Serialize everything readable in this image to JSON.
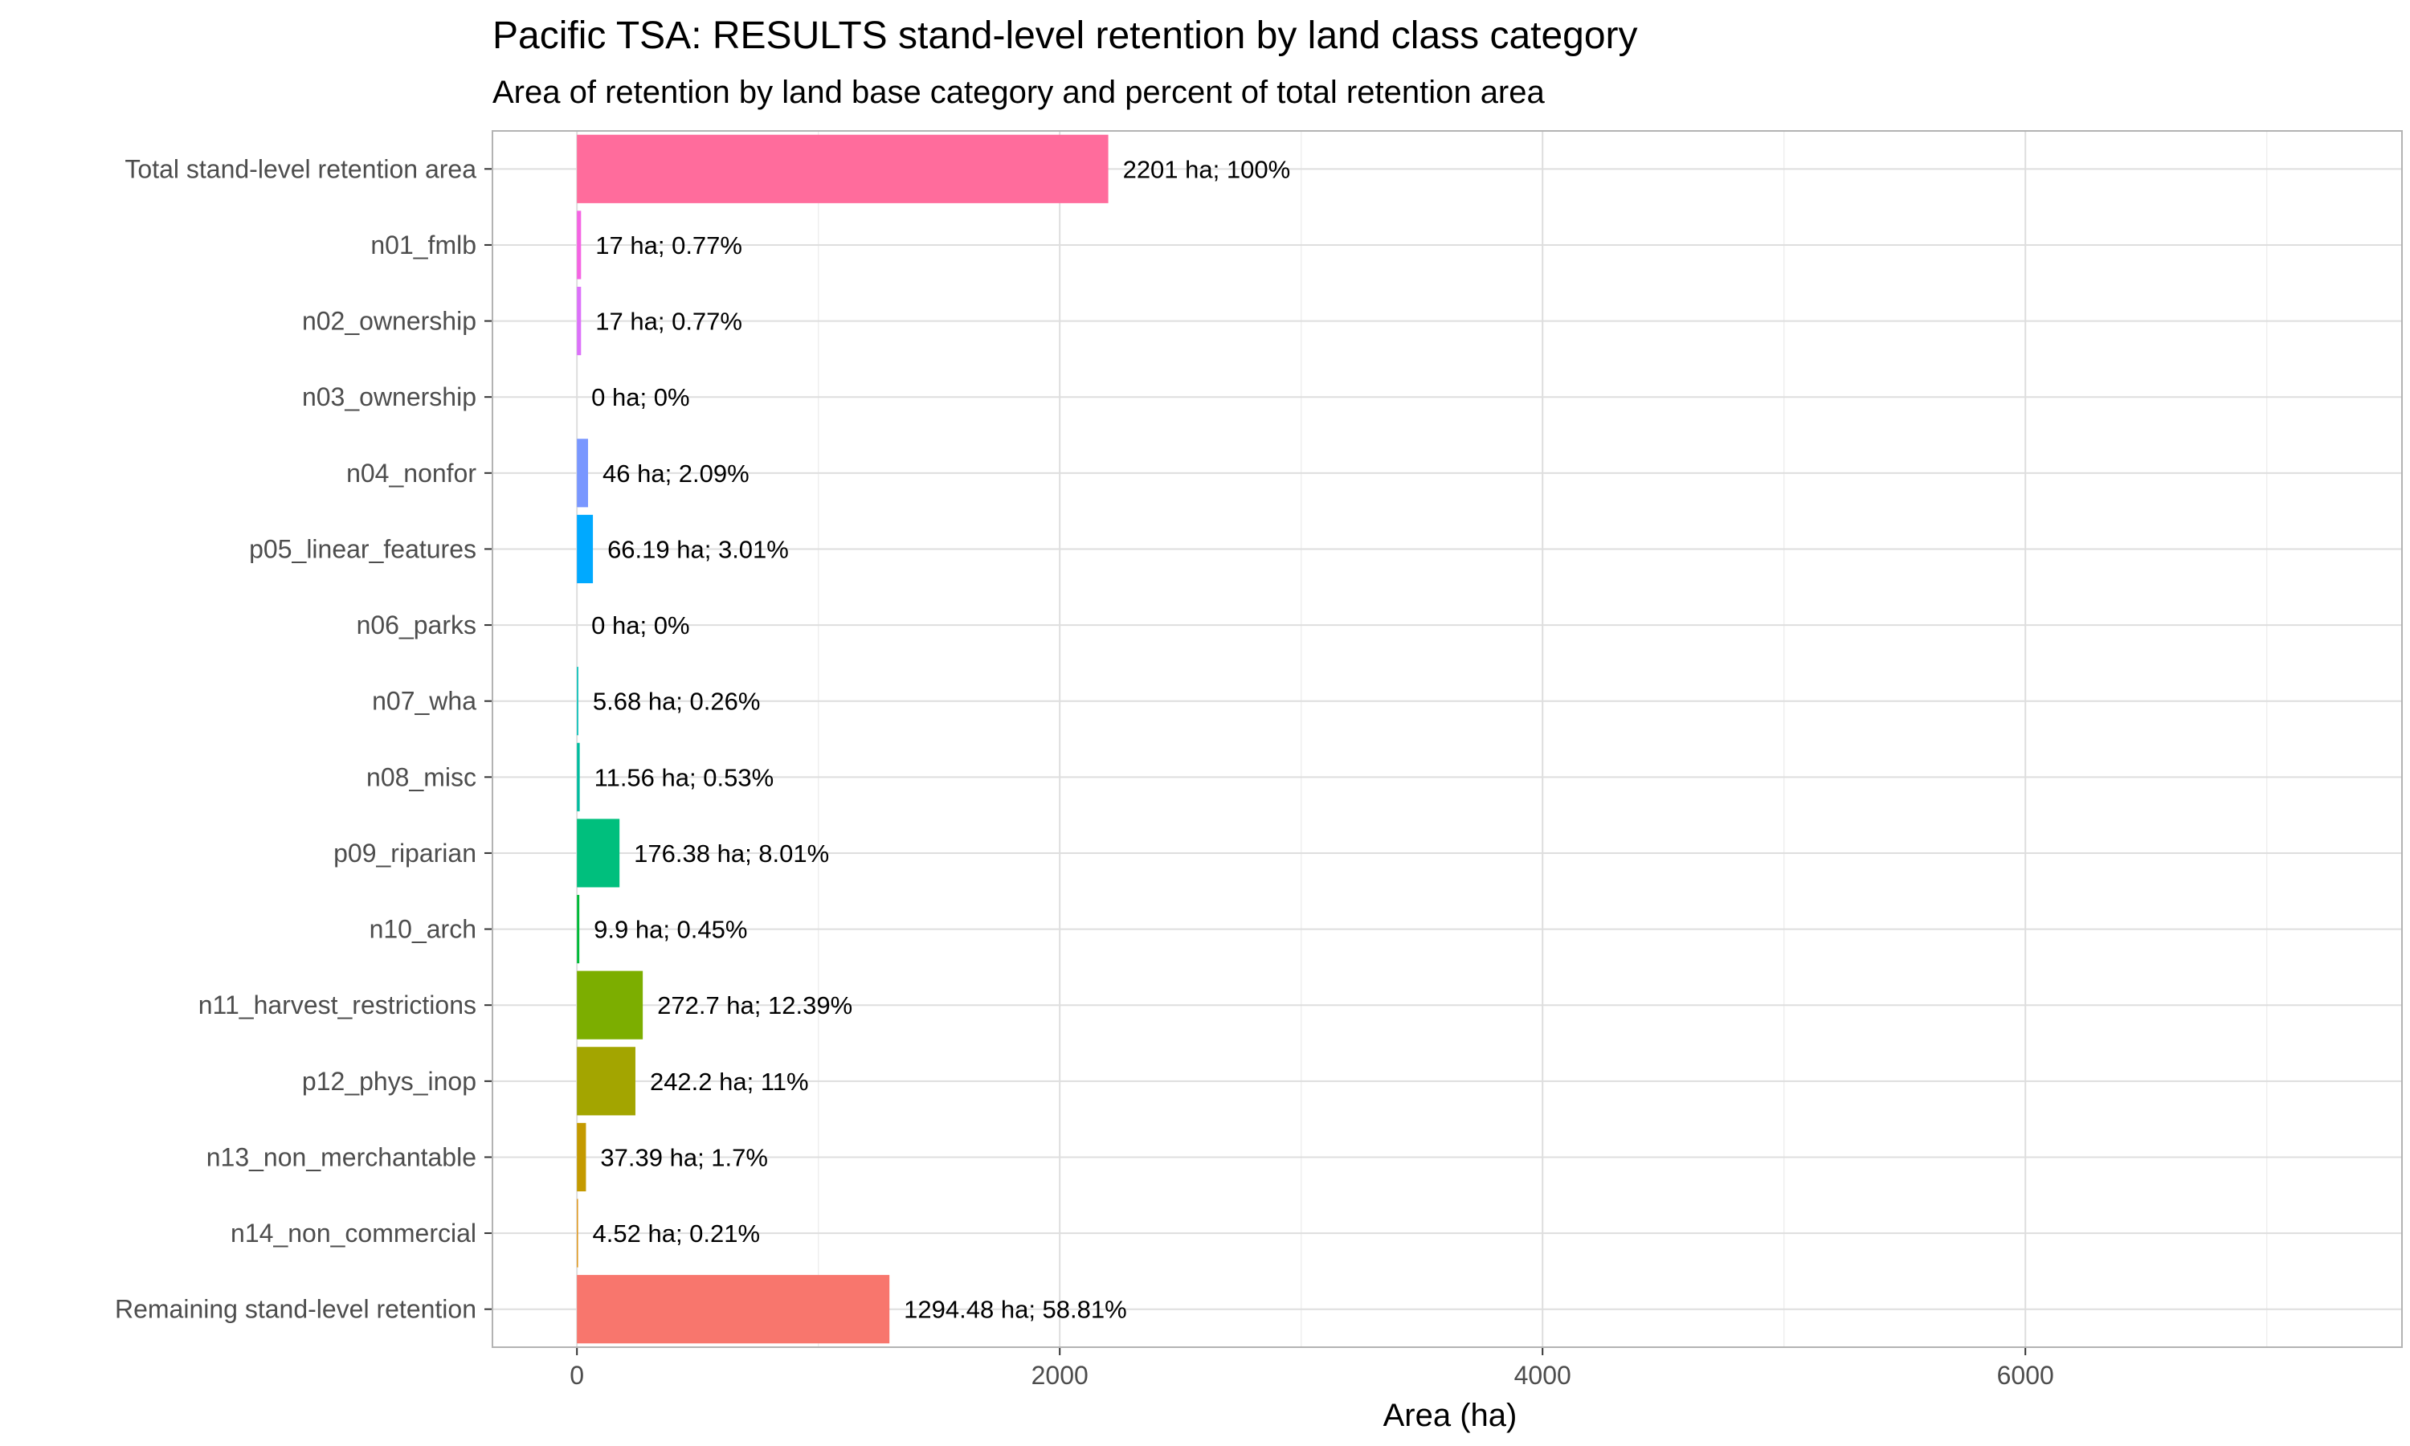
{
  "chart_data": {
    "type": "bar",
    "orientation": "horizontal",
    "title": "Pacific TSA: RESULTS stand-level retention by land class category",
    "subtitle": "Area of retention by land base category and percent of total retention area",
    "xlabel": "Area (ha)",
    "ylabel": "",
    "xlim": [
      -350,
      7560
    ],
    "x_ticks": [
      0,
      2000,
      4000,
      6000
    ],
    "x_minor_ticks": [
      1000,
      3000,
      5000,
      7000
    ],
    "grid": true,
    "legend": "none",
    "categories": [
      "Total stand-level retention area",
      "n01_fmlb",
      "n02_ownership",
      "n03_ownership",
      "n04_nonfor",
      "p05_linear_features",
      "n06_parks",
      "n07_wha",
      "n08_misc",
      "p09_riparian",
      "n10_arch",
      "n11_harvest_restrictions",
      "p12_phys_inop",
      "n13_non_merchantable",
      "n14_non_commercial",
      "Remaining stand-level retention"
    ],
    "values": [
      2201,
      17,
      17,
      0,
      46,
      66.19,
      0,
      5.68,
      11.56,
      176.38,
      9.9,
      272.7,
      242.2,
      37.39,
      4.52,
      1294.48
    ],
    "labels": [
      "2201 ha; 100%",
      "17 ha; 0.77%",
      "17 ha; 0.77%",
      "0 ha; 0%",
      "46 ha; 2.09%",
      "66.19 ha; 3.01%",
      "0 ha; 0%",
      "5.68 ha; 0.26%",
      "11.56 ha; 0.53%",
      "176.38 ha; 8.01%",
      "9.9 ha; 0.45%",
      "272.7 ha; 12.39%",
      "242.2 ha; 11%",
      "37.39 ha; 1.7%",
      "4.52 ha; 0.21%",
      "1294.48 ha; 58.81%"
    ],
    "colors": [
      "#FF6C9C",
      "#F564E3",
      "#DC71FA",
      "#B385FF",
      "#7997FF",
      "#00A9FF",
      "#00BAE0",
      "#00C0B8",
      "#00BC9F",
      "#00BF7D",
      "#00BA38",
      "#7CAE00",
      "#A3A500",
      "#C49A00",
      "#DE8C00",
      "#F8766D"
    ]
  }
}
